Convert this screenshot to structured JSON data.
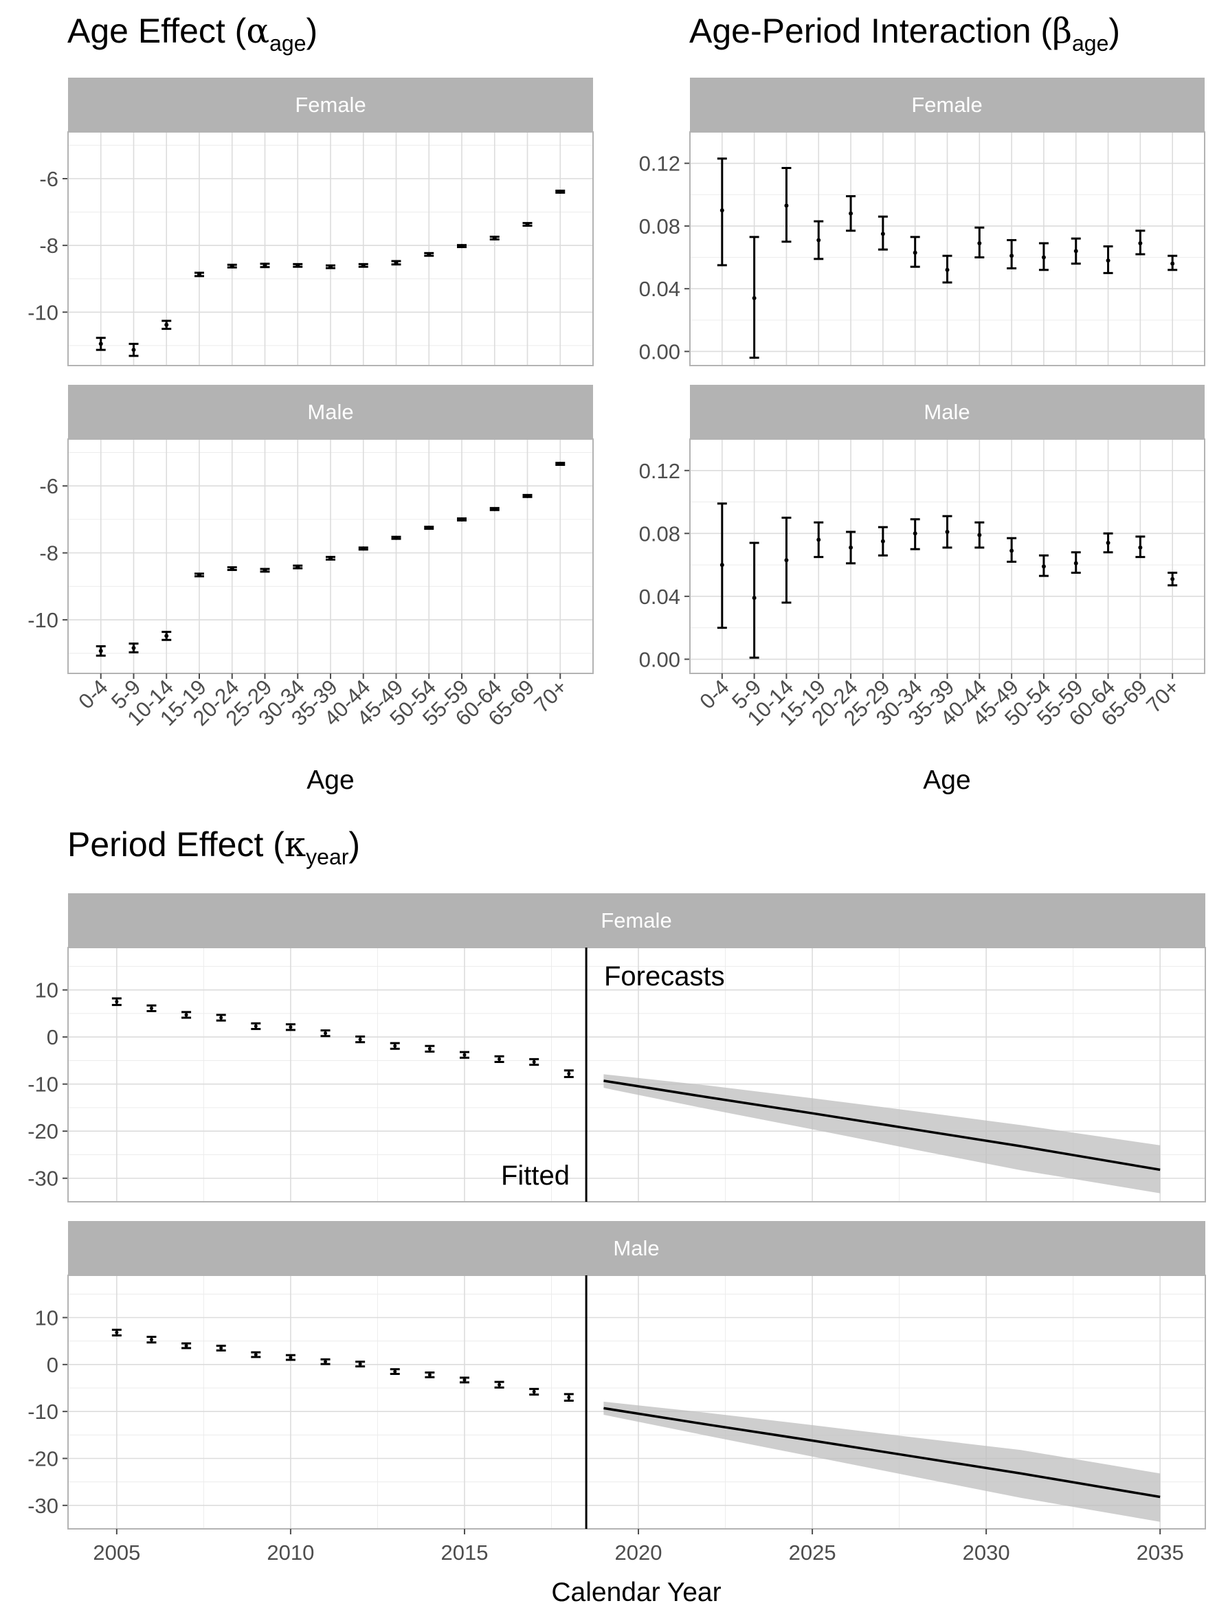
{
  "chart_data": [
    {
      "type": "errorbar",
      "title": "Age Effect (αage)",
      "title_main": "Age Effect (",
      "title_symbol": "α",
      "title_sub": "age",
      "title_close": ")",
      "xlabel": "Age",
      "ylabel": "",
      "categories": [
        "0-4",
        "5-9",
        "10-14",
        "15-19",
        "20-24",
        "25-29",
        "30-34",
        "35-39",
        "40-44",
        "45-49",
        "50-54",
        "55-59",
        "60-64",
        "65-69",
        "70+"
      ],
      "ylim": [
        -11.6,
        -4.6
      ],
      "yticks": [
        -10,
        -8,
        -6
      ],
      "ytick_labels": [
        "-10",
        "-8",
        "-6"
      ],
      "panels": [
        {
          "label": "Female",
          "values": [
            -10.95,
            -11.13,
            -10.38,
            -8.87,
            -8.62,
            -8.6,
            -8.6,
            -8.64,
            -8.6,
            -8.52,
            -8.27,
            -8.02,
            -7.78,
            -7.37,
            -6.39
          ],
          "lower": [
            -11.13,
            -11.31,
            -10.5,
            -8.92,
            -8.66,
            -8.65,
            -8.64,
            -8.68,
            -8.64,
            -8.57,
            -8.31,
            -8.05,
            -7.82,
            -7.41,
            -6.42
          ],
          "upper": [
            -10.77,
            -10.95,
            -10.26,
            -8.82,
            -8.58,
            -8.55,
            -8.56,
            -8.6,
            -8.56,
            -8.47,
            -8.23,
            -7.99,
            -7.74,
            -7.33,
            -6.36
          ]
        },
        {
          "label": "Male",
          "values": [
            -10.93,
            -10.84,
            -10.48,
            -8.66,
            -8.47,
            -8.52,
            -8.42,
            -8.16,
            -7.87,
            -7.55,
            -7.25,
            -7.0,
            -6.69,
            -6.3,
            -5.34
          ],
          "lower": [
            -11.07,
            -10.97,
            -10.6,
            -8.7,
            -8.51,
            -8.56,
            -8.46,
            -8.2,
            -7.9,
            -7.58,
            -7.28,
            -7.03,
            -6.72,
            -6.33,
            -5.37
          ],
          "upper": [
            -10.79,
            -10.71,
            -10.36,
            -8.62,
            -8.43,
            -8.48,
            -8.38,
            -8.12,
            -7.84,
            -7.52,
            -7.22,
            -6.97,
            -6.66,
            -6.27,
            -5.31
          ]
        }
      ]
    },
    {
      "type": "errorbar",
      "title": "Age-Period Interaction (βage)",
      "title_main": "Age-Period Interaction (",
      "title_symbol": "β",
      "title_sub": "age",
      "title_close": ")",
      "xlabel": "Age",
      "ylabel": "",
      "categories": [
        "0-4",
        "5-9",
        "10-14",
        "15-19",
        "20-24",
        "25-29",
        "30-34",
        "35-39",
        "40-44",
        "45-49",
        "50-54",
        "55-59",
        "60-64",
        "65-69",
        "70+"
      ],
      "ylim": [
        -0.009,
        0.14
      ],
      "yticks": [
        0.0,
        0.04,
        0.08,
        0.12
      ],
      "ytick_labels": [
        "0.00",
        "0.04",
        "0.08",
        "0.12"
      ],
      "panels": [
        {
          "label": "Female",
          "values": [
            0.09,
            0.034,
            0.093,
            0.071,
            0.088,
            0.075,
            0.063,
            0.052,
            0.069,
            0.061,
            0.06,
            0.064,
            0.058,
            0.069,
            0.056
          ],
          "lower": [
            0.055,
            -0.004,
            0.07,
            0.059,
            0.077,
            0.065,
            0.054,
            0.044,
            0.06,
            0.053,
            0.052,
            0.056,
            0.05,
            0.062,
            0.052
          ],
          "upper": [
            0.123,
            0.073,
            0.117,
            0.083,
            0.099,
            0.086,
            0.073,
            0.061,
            0.079,
            0.071,
            0.069,
            0.072,
            0.067,
            0.077,
            0.061
          ]
        },
        {
          "label": "Male",
          "values": [
            0.06,
            0.039,
            0.063,
            0.076,
            0.071,
            0.075,
            0.08,
            0.081,
            0.079,
            0.069,
            0.059,
            0.061,
            0.074,
            0.071,
            0.051
          ],
          "lower": [
            0.02,
            0.001,
            0.036,
            0.065,
            0.061,
            0.066,
            0.07,
            0.071,
            0.071,
            0.062,
            0.053,
            0.055,
            0.068,
            0.065,
            0.047
          ],
          "upper": [
            0.099,
            0.074,
            0.09,
            0.087,
            0.081,
            0.084,
            0.089,
            0.091,
            0.087,
            0.077,
            0.066,
            0.068,
            0.08,
            0.078,
            0.055
          ]
        }
      ]
    },
    {
      "type": "errorbar+line",
      "title": "Period Effect (κyear)",
      "title_main": "Period Effect (",
      "title_symbol": "κ",
      "title_sub": "year",
      "title_close": ")",
      "xlabel": "Calendar Year",
      "ylabel": "",
      "xlim": [
        2003.6,
        2036.3
      ],
      "xticks": [
        2005,
        2010,
        2015,
        2020,
        2025,
        2030,
        2035
      ],
      "ylim": [
        -35,
        19
      ],
      "yticks": [
        -30,
        -20,
        -10,
        0,
        10
      ],
      "ytick_labels": [
        "-30",
        "-20",
        "-10",
        "0",
        "10"
      ],
      "divider_x": 2018.5,
      "annotation_forecasts": "Forecasts",
      "annotation_fitted": "Fitted",
      "panels": [
        {
          "label": "Female",
          "fitted_years": [
            2005,
            2006,
            2007,
            2008,
            2009,
            2010,
            2011,
            2012,
            2013,
            2014,
            2015,
            2016,
            2017,
            2018
          ],
          "fitted": [
            7.5,
            6.1,
            4.7,
            4.1,
            2.3,
            2.1,
            0.8,
            -0.5,
            -1.9,
            -2.5,
            -3.8,
            -4.7,
            -5.3,
            -7.8
          ],
          "fitted_err": [
            0.7,
            0.6,
            0.6,
            0.6,
            0.6,
            0.6,
            0.6,
            0.6,
            0.6,
            0.6,
            0.6,
            0.6,
            0.6,
            0.7
          ],
          "forecast_years": [
            2019,
            2022,
            2025,
            2028,
            2031,
            2035
          ],
          "forecast": [
            -9.3,
            -12.8,
            -16.2,
            -19.7,
            -23.2,
            -28.2
          ],
          "forecast_lower": [
            -10.8,
            -15.3,
            -19.6,
            -24.0,
            -28.3,
            -33.2
          ],
          "forecast_upper": [
            -7.9,
            -10.3,
            -13.0,
            -15.8,
            -18.7,
            -23.0
          ]
        },
        {
          "label": "Male",
          "fitted_years": [
            2005,
            2006,
            2007,
            2008,
            2009,
            2010,
            2011,
            2012,
            2013,
            2014,
            2015,
            2016,
            2017,
            2018
          ],
          "fitted": [
            6.8,
            5.3,
            4.0,
            3.5,
            2.1,
            1.5,
            0.6,
            0.1,
            -1.5,
            -2.2,
            -3.3,
            -4.3,
            -5.8,
            -7.0
          ],
          "fitted_err": [
            0.6,
            0.6,
            0.5,
            0.5,
            0.5,
            0.5,
            0.5,
            0.5,
            0.5,
            0.5,
            0.5,
            0.6,
            0.6,
            0.7
          ],
          "forecast_years": [
            2019,
            2022,
            2025,
            2028,
            2031,
            2035
          ],
          "forecast": [
            -9.3,
            -12.8,
            -16.2,
            -19.7,
            -23.2,
            -28.2
          ],
          "forecast_lower": [
            -10.7,
            -15.2,
            -19.6,
            -24.0,
            -28.4,
            -33.5
          ],
          "forecast_upper": [
            -7.9,
            -10.3,
            -12.9,
            -15.6,
            -18.2,
            -23.2
          ]
        }
      ]
    }
  ]
}
